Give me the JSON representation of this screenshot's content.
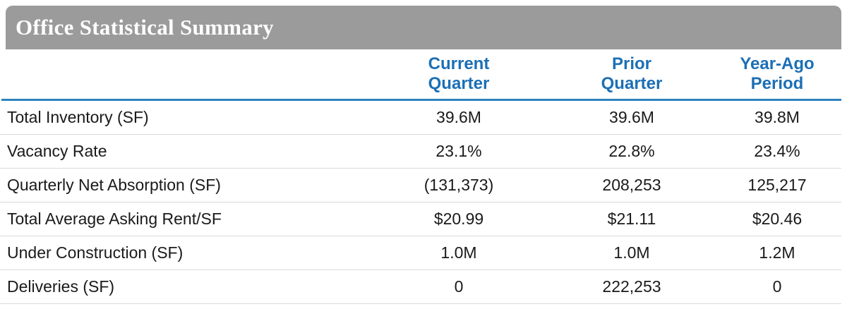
{
  "title_bar": {
    "title": "Office Statistical Summary"
  },
  "chart_data": {
    "type": "table",
    "title": "Office Statistical Summary",
    "columns": [
      "Current\nQuarter",
      "Prior\nQuarter",
      "Year-Ago\nPeriod"
    ],
    "rows": [
      {
        "label": "Total Inventory (SF)",
        "values": [
          "39.6M",
          "39.6M",
          "39.8M"
        ]
      },
      {
        "label": "Vacancy Rate",
        "values": [
          "23.1%",
          "22.8%",
          "23.4%"
        ]
      },
      {
        "label": "Quarterly Net Absorption (SF)",
        "values": [
          "(131,373)",
          "208,253",
          "125,217"
        ]
      },
      {
        "label": "Total Average Asking Rent/SF",
        "values": [
          "$20.99",
          "$21.11",
          "$20.46"
        ]
      },
      {
        "label": "Under Construction (SF)",
        "values": [
          "1.0M",
          "1.0M",
          "1.2M"
        ]
      },
      {
        "label": "Deliveries (SF)",
        "values": [
          "0",
          "222,253",
          "0"
        ]
      }
    ]
  },
  "colors": {
    "title_bar_gray": "#9b9b9b",
    "title_text": "#ffffff",
    "header_blue": "#1c6fb5",
    "rule_blue": "#2d82bd",
    "row_separator": "#d9d9d9",
    "body_text": "#1a1a1a"
  }
}
